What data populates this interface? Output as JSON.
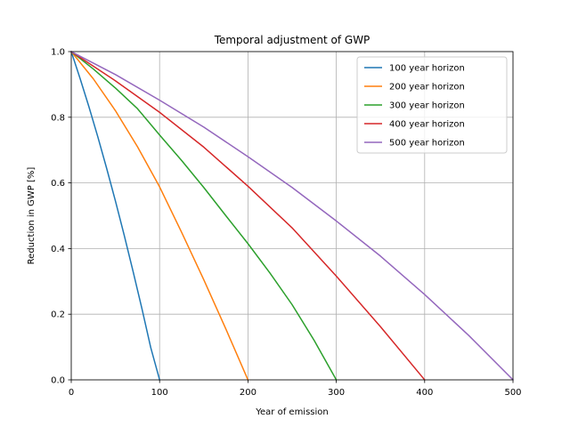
{
  "chart_data": {
    "type": "line",
    "title": "Temporal adjustment of GWP",
    "xlabel": "Year of emission",
    "ylabel": "Reduction in GWP [%]",
    "xlim": [
      0,
      500
    ],
    "ylim": [
      0.0,
      1.0
    ],
    "xticks": [
      "0",
      "100",
      "200",
      "300",
      "400",
      "500"
    ],
    "yticks": [
      "0.0",
      "0.2",
      "0.4",
      "0.6",
      "0.8",
      "1.0"
    ],
    "grid": true,
    "legend_position": "top-right",
    "series": [
      {
        "name": "100 year horizon",
        "color": "#1f77b4",
        "x": [
          0,
          10,
          20,
          30,
          40,
          50,
          60,
          70,
          80,
          90,
          100
        ],
        "y": [
          1.0,
          0.918,
          0.832,
          0.741,
          0.645,
          0.545,
          0.44,
          0.33,
          0.217,
          0.098,
          0.0
        ]
      },
      {
        "name": "200 year horizon",
        "color": "#ff7f0e",
        "x": [
          0,
          25,
          50,
          75,
          100,
          125,
          150,
          175,
          200
        ],
        "y": [
          1.0,
          0.917,
          0.82,
          0.71,
          0.588,
          0.449,
          0.305,
          0.155,
          0.0
        ]
      },
      {
        "name": "300 year horizon",
        "color": "#2ca02c",
        "x": [
          0,
          25,
          50,
          75,
          100,
          125,
          150,
          175,
          200,
          225,
          250,
          275,
          300
        ],
        "y": [
          1.0,
          0.947,
          0.889,
          0.826,
          0.746,
          0.668,
          0.586,
          0.5,
          0.415,
          0.325,
          0.229,
          0.12,
          0.0
        ]
      },
      {
        "name": "400 year horizon",
        "color": "#d62728",
        "x": [
          0,
          50,
          100,
          150,
          200,
          250,
          300,
          350,
          400
        ],
        "y": [
          1.0,
          0.911,
          0.815,
          0.709,
          0.59,
          0.463,
          0.316,
          0.162,
          0.0
        ]
      },
      {
        "name": "500 year horizon",
        "color": "#9467bd",
        "x": [
          0,
          50,
          100,
          150,
          200,
          250,
          300,
          350,
          400,
          450,
          500
        ],
        "y": [
          1.0,
          0.93,
          0.852,
          0.77,
          0.68,
          0.586,
          0.484,
          0.377,
          0.26,
          0.135,
          0.0
        ]
      }
    ]
  }
}
